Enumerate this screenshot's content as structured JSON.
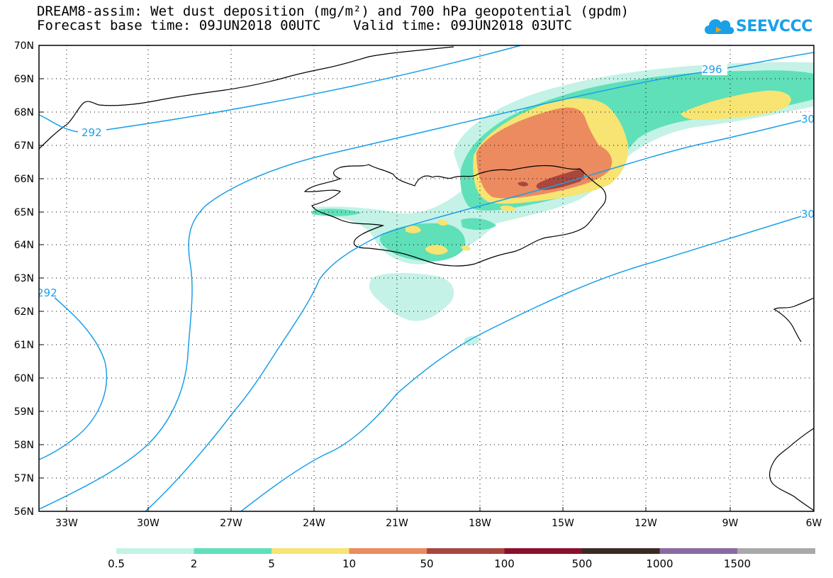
{
  "title": {
    "line1": "DREAM8-assim: Wet dust deposition (mg/m²) and 700 hPa geopotential (gpdm)",
    "line2": "Forecast base time: 09JUN2018 00UTC    Valid time: 09JUN2018 03UTC"
  },
  "logo": {
    "text": "SEEVCCC",
    "icon": "cloud-logo-icon"
  },
  "map": {
    "lat_labels": [
      "70N",
      "69N",
      "68N",
      "67N",
      "66N",
      "65N",
      "64N",
      "63N",
      "62N",
      "61N",
      "60N",
      "59N",
      "58N",
      "57N",
      "56N"
    ],
    "lon_labels": [
      "33W",
      "30W",
      "27W",
      "24W",
      "21W",
      "18W",
      "15W",
      "12W",
      "9W",
      "6W"
    ],
    "lat_range": [
      56,
      70
    ],
    "lon_range": [
      -34.5,
      -6
    ],
    "grid": "dotted",
    "contour_labels": [
      "292",
      "292",
      "296",
      "30",
      "30"
    ]
  },
  "colorbar": {
    "labels": [
      "0.5",
      "2",
      "5",
      "10",
      "50",
      "100",
      "500",
      "1000",
      "1500"
    ],
    "colors": [
      "#c4f2e6",
      "#5fe0b8",
      "#f7e472",
      "#ec8a60",
      "#a8473e",
      "#8a0f2c",
      "#3a2a22",
      "#8a6aa0",
      "#a9a9a9"
    ]
  }
}
